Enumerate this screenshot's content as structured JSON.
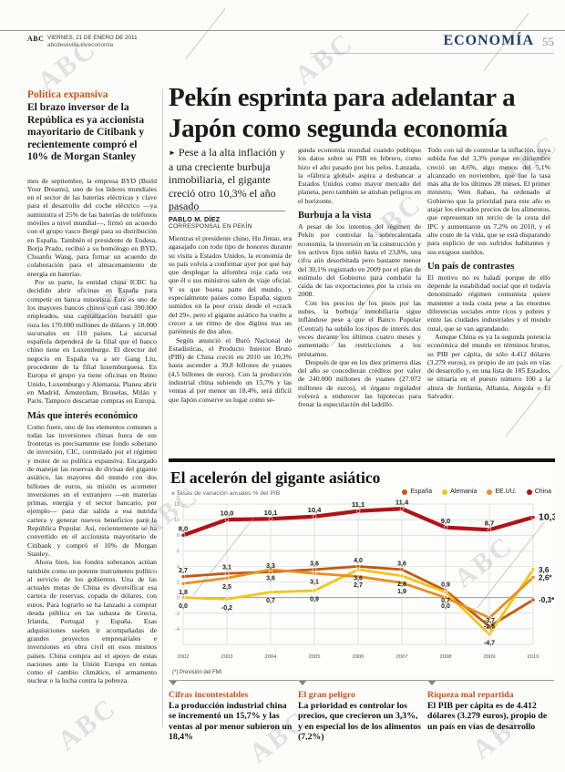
{
  "header": {
    "brand": "ABC",
    "date_line": "VIERNES, 21 DE ENERO DE 2011",
    "site_line": "abcdesevilla.es/economia",
    "section": "ECONOMÍA",
    "page_number": "55"
  },
  "left_column": {
    "kicker": "Política expansiva",
    "intro": "El brazo inversor de la República es ya accionista mayoritario de Citibank y recientemente compró el 10% de Morgan Stanley",
    "paragraphs": [
      "mes de septiembre, la empresa BYD (Build Your Dreams), uno de los líderes mundiales en el sector de las baterías eléctricas y clave para el desarrollo del coche eléctrico —ya suministra el 25% de las baterías de teléfonos móviles a nivel mundial—, firmó un acuerdo con el grupo vasco Bergé para su distribución en España. También el presidente de Endesa, Borja Prado, recibió a su homólogo en BYD, Chuanfu Wang, para firmar un acuerdo de colaboración para el almacenamiento de energía en baterías.",
      "Por su parte, la entidad china ICBC ha decidido abrir oficinas en España para competir en banca minorista. Éste es uno de los mayores bancos chinos con casi 390.000 empleados, una capitalización bursátil que roza los 170.000 millones de dólares y 18.000 sucursales en 110 países. La sucursal española dependerá de la filial que el banco chino tiene en Luxemburgo. El director del negocio en España va a ser Gang Liu, procedente de la filial luxemburguesa. En Europa el grupo ya tiene oficinas en Reino Unido, Luxemburgo y Alemania. Planea abrir en Madrid, Ámsterdam, Bruselas, Milán y París. Tampoco descartan compras en Europa."
    ],
    "subhead": "Más que interés económico",
    "paragraphs2": [
      "Como fuere, uno de los elementos comunes a todas las inversiones chinas fuera de sus fronteras es precisamente ese fondo soberano de inversión, CIC, controlado por el régimen y motor de su política expansiva. Encargado de manejar las reservas de divisas del gigante asiático, las mayores del mundo con dos billones de euros, su misión es acometer inversiones en el extranjero —en materias primas, energía y el sector bancario, por ejemplo— para dar salida a esa nutrida cartera y generar nuevos beneficios para la República Popular. Así, recientemente se ha convertido en el accionista mayoritario de Citibank y compró el 10% de Morgan Stanley.",
      "Ahora bien, los fondos soberanos actúan también como un potente instrumento político al servicio de los gobiernos. Una de las actuales metas de China es diversificar esa cartera de reservas, copada de dólares, con euros. Para lograrlo se ha lanzado a comprar deuda pública en las subasta de Grecia, Irlanda, Portugal y España. Esas adquisiciones suelen ir acompañadas de grandes proyectos empresariales e inversiones en obra civil en esos mismos países. China compra así el apoyo de estas naciones ante la Unión Europa en temas como el cambio climático, el armamento nuclear o la lucha contra la pobreza."
    ]
  },
  "article": {
    "headline1": "Pekín esprinta para adelantar a",
    "headline2": "Japón como segunda economía",
    "lead_bullet": "►",
    "lead": "Pese a la alta inflación y a una creciente burbuja inmobiliaria, el gigante creció otro 10,3% el año pasado",
    "byline_name": "PABLO M. DÍEZ",
    "byline_role": "CORRESPONSAL EN PEKÍN",
    "col2": {
      "paras": [
        "Mientras el presidente chino, Hu Jintao, era agasajado con todo tipo de honores durante su visita a Estados Unidos, la economía de su país volvía a confirmar ayer por qué hay que desplegar la alfombra roja cada vez que él o sus ministros salen de viaje oficial. Y es que buena parte del mundo, y especialmente países como España, siguen sumidos en la peor crisis desde el «crack del 29», pero el gigante asiático ha vuelto a crecer a un ritmo de dos dígitos tras un paréntesis de dos años.",
        "Según anunció el Buró Nacional de Estadísticas, el Producto Interior Bruto (PIB) de China creció en 2010 un 10,3% hasta ascender a 39,8 billones de yuanes (4,5 billones de euros). Con la producción industrial china subiendo un 15,7% y las ventas al por menor un 18,4%, será difícil que Japón conserve su lugar como se-"
      ]
    },
    "col3": {
      "paras1": [
        "gunda economía mundial cuando publique los datos sobre su PIB en febrero, como hizo el año pasado por los pelos. Lanzada, la «fábrica global» aspira a desbancar a Estados Unidos como mayor mercado del planeta, pero también se atisban peligros en el horizonte."
      ],
      "subhead": "Burbuja a la vista",
      "paras2": [
        "A pesar de los intentos del régimen de Pekín por controlar la sobrecalentada economía, la inversión en la construcción y los activos fijos subió hasta el 23,8%, una cifra aún desorbitada pero bastante menor del 30,1% registrado en 2009 por el plan de estímulo del Gobierno para combatir la caída de las exportaciones por la crisis en 2008.",
        "Con los precios de los pisos por las nubes, la burbuja inmobiliaria sigue inflándose pese a que el Banco Popular (Central) ha subido los tipos de interés dos veces durante los últimos cuatro meses y aumentado las restricciones a los préstamos.",
        "Después de que en los diez primeros días del año se concedieran créditos por valor de 240.000 millones de yuanes (27.072 millones de euros), el órgano regulador volverá a endurecer las hipotecas para frenar la especulación del ladrillo."
      ]
    },
    "col4": {
      "paras1": [
        "Todo con tal de controlar la inflación, cuya subida fue del 3,3% porque en diciembre creció un 4,6%, algo menos del 5,1% alcanzado en noviembre, que fue la tasa más alta de los últimos 28 meses. El primer ministro, Wen Jiabao, ha ordenado al Gobierno que la prioridad para este año es atajar los elevados precios de los alimentos, que representan un tercio de la cesta del IPC y aumentaron un 7,2% en 2010, y el alto coste de la vida, que se está disparando para suplicio de sus sufridos habitantes y sus exiguos sueldos."
      ],
      "subhead": "Un país de contrastes",
      "paras2": [
        "El motivo no es baladí porque de ello depende la estabilidad social que el todavía denominado régimen comunista quiere mantener a toda costa pese a las enormes diferencias sociales entre ricos y pobres y entre las ciudades industriales y el mundo rural, que se van agrandando.",
        "Aunque China es ya la segunda potencia económica del mundo en términos brutos, su PIB per cápita, de sólo 4.412 dólares (3.279 euros), es propio de un país en vías de desarrollo y, en una lista de 185 Estados, se situaría en el puesto número 100 a la altura de Jordania, Albania, Angola o El Salvador."
      ]
    }
  },
  "chart_data": {
    "type": "line",
    "title": "El acelerón del gigante asiático",
    "subtitle_mark": "»",
    "subtitle": "Tasas de variación anuales % del PIB",
    "footnote": "(*) Previsión del FMI",
    "x": [
      2002,
      2003,
      2004,
      2005,
      2006,
      2007,
      2008,
      2009,
      2010
    ],
    "ylim": [
      -6,
      12
    ],
    "ytick_step": 2,
    "grid": true,
    "legend_position": "top-right",
    "series": [
      {
        "name": "España",
        "color": "#c05a14",
        "values": [
          2.7,
          3.1,
          3.3,
          3.6,
          4.0,
          3.6,
          0.9,
          -3.7,
          -0.3
        ],
        "labels": [
          "2,7",
          "3,1",
          "3,3",
          "3,6",
          "4,0",
          "3,6",
          "0,9",
          "-3,7",
          "-0,3*"
        ]
      },
      {
        "name": "Alemania",
        "color": "#f2c51c",
        "values": [
          0.0,
          -0.2,
          0.7,
          0.9,
          3.6,
          2.8,
          0.7,
          -4.7,
          3.6
        ],
        "labels": [
          "0,0",
          "-0,2",
          "0,7",
          "0,9",
          "3,6",
          "2,8",
          "0,7",
          "-4,7",
          "3,6"
        ]
      },
      {
        "name": "EE.UU.",
        "color": "#e88f22",
        "values": [
          1.8,
          2.5,
          3.6,
          3.1,
          2.7,
          1.9,
          0.0,
          -2.6,
          2.6
        ],
        "labels": [
          "1,8",
          "2,5",
          "3,6",
          "3,1",
          "2,7",
          "1,9",
          "0,0",
          "-2,6",
          "2,6*"
        ]
      },
      {
        "name": "China",
        "color": "#b01217",
        "values": [
          8.0,
          10.0,
          10.1,
          10.4,
          11.1,
          11.4,
          9.0,
          8.7,
          10.3
        ],
        "labels": [
          "8,0",
          "10,0",
          "10,1",
          "10,4",
          "11,1",
          "11,4",
          "9,0",
          "8,7",
          "10,3"
        ]
      }
    ]
  },
  "briefs": [
    {
      "head": "Cifras incontestables",
      "text": "La producción industrial china se incrementó un 15,7% y las ventas al por menor subieron un 18,4%"
    },
    {
      "head": "El gran peligro",
      "text": "La prioridad es controlar los precios, que crecieron un 3,3%, y en especial los de los alimentos (7,2%)"
    },
    {
      "head": "Riqueza mal repartida",
      "text": "El PIB per cápita es de 4.412 dólares (3.279 euros), propio de un país en vías de desarrollo"
    }
  ],
  "decor": {
    "watermark": "ABC"
  }
}
